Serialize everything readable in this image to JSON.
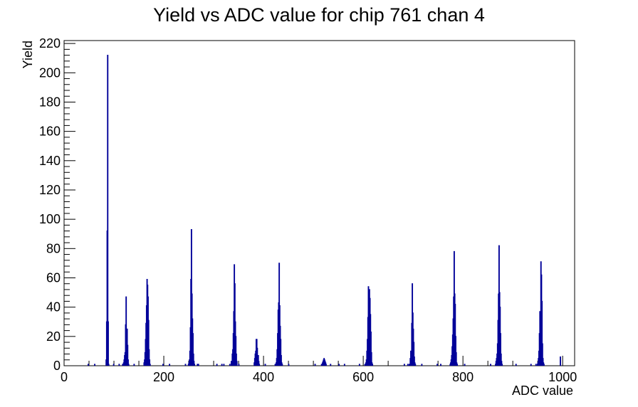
{
  "chart_data": {
    "type": "histogram",
    "title": "Yield vs ADC value for chip 761 chan 4",
    "xlabel": "ADC value",
    "ylabel": "Yield",
    "xlim": [
      0,
      1024
    ],
    "ylim": [
      0,
      222
    ],
    "x_ticks": [
      0,
      200,
      400,
      600,
      800,
      1000
    ],
    "y_ticks": [
      0,
      20,
      40,
      60,
      80,
      100,
      120,
      140,
      160,
      180,
      200,
      220
    ],
    "bin_width": 1,
    "grid": false,
    "line_color": "#000099",
    "bins": [
      [
        48,
        1
      ],
      [
        61,
        1
      ],
      [
        84,
        4
      ],
      [
        85,
        30
      ],
      [
        86,
        92
      ],
      [
        87,
        212
      ],
      [
        88,
        30
      ],
      [
        89,
        1
      ],
      [
        99,
        1
      ],
      [
        110,
        1
      ],
      [
        117,
        1
      ],
      [
        119,
        2
      ],
      [
        120,
        4
      ],
      [
        121,
        7
      ],
      [
        122,
        9
      ],
      [
        123,
        28
      ],
      [
        124,
        47
      ],
      [
        125,
        18
      ],
      [
        126,
        25
      ],
      [
        127,
        14
      ],
      [
        128,
        4
      ],
      [
        129,
        1
      ],
      [
        140,
        1
      ],
      [
        160,
        2
      ],
      [
        161,
        4
      ],
      [
        162,
        9
      ],
      [
        163,
        18
      ],
      [
        164,
        29
      ],
      [
        165,
        41
      ],
      [
        166,
        59
      ],
      [
        167,
        55
      ],
      [
        168,
        47
      ],
      [
        169,
        31
      ],
      [
        170,
        11
      ],
      [
        171,
        4
      ],
      [
        172,
        1
      ],
      [
        198,
        1
      ],
      [
        211,
        1
      ],
      [
        243,
        1
      ],
      [
        249,
        1
      ],
      [
        250,
        2
      ],
      [
        251,
        4
      ],
      [
        252,
        10
      ],
      [
        253,
        26
      ],
      [
        254,
        59
      ],
      [
        255,
        93
      ],
      [
        256,
        49
      ],
      [
        257,
        32
      ],
      [
        258,
        22
      ],
      [
        259,
        8
      ],
      [
        260,
        3
      ],
      [
        261,
        1
      ],
      [
        267,
        1
      ],
      [
        269,
        1
      ],
      [
        306,
        1
      ],
      [
        316,
        1
      ],
      [
        320,
        1
      ],
      [
        332,
        1
      ],
      [
        335,
        3
      ],
      [
        337,
        8
      ],
      [
        338,
        11
      ],
      [
        339,
        22
      ],
      [
        340,
        37
      ],
      [
        341,
        69
      ],
      [
        342,
        56
      ],
      [
        343,
        30
      ],
      [
        344,
        20
      ],
      [
        345,
        8
      ],
      [
        346,
        3
      ],
      [
        350,
        1
      ],
      [
        381,
        2
      ],
      [
        382,
        5
      ],
      [
        383,
        8
      ],
      [
        384,
        10
      ],
      [
        385,
        18
      ],
      [
        386,
        18
      ],
      [
        387,
        12
      ],
      [
        388,
        7
      ],
      [
        389,
        7
      ],
      [
        390,
        3
      ],
      [
        391,
        1
      ],
      [
        403,
        1
      ],
      [
        423,
        1
      ],
      [
        425,
        2
      ],
      [
        426,
        5
      ],
      [
        427,
        11
      ],
      [
        428,
        22
      ],
      [
        429,
        38
      ],
      [
        430,
        43
      ],
      [
        431,
        70
      ],
      [
        432,
        41
      ],
      [
        433,
        27
      ],
      [
        434,
        18
      ],
      [
        435,
        7
      ],
      [
        436,
        2
      ],
      [
        437,
        1
      ],
      [
        450,
        1
      ],
      [
        503,
        1
      ],
      [
        516,
        1
      ],
      [
        518,
        2
      ],
      [
        519,
        3
      ],
      [
        520,
        4
      ],
      [
        521,
        5
      ],
      [
        522,
        4
      ],
      [
        523,
        3
      ],
      [
        524,
        2
      ],
      [
        525,
        1
      ],
      [
        534,
        1
      ],
      [
        551,
        1
      ],
      [
        562,
        1
      ],
      [
        592,
        1
      ],
      [
        603,
        1
      ],
      [
        605,
        2
      ],
      [
        606,
        4
      ],
      [
        607,
        10
      ],
      [
        608,
        18
      ],
      [
        609,
        33
      ],
      [
        610,
        54
      ],
      [
        611,
        46
      ],
      [
        612,
        52
      ],
      [
        613,
        46
      ],
      [
        614,
        35
      ],
      [
        615,
        23
      ],
      [
        616,
        9
      ],
      [
        617,
        2
      ],
      [
        618,
        1
      ],
      [
        682,
        1
      ],
      [
        689,
        1
      ],
      [
        692,
        1
      ],
      [
        694,
        5
      ],
      [
        695,
        10
      ],
      [
        696,
        10
      ],
      [
        697,
        29
      ],
      [
        698,
        56
      ],
      [
        699,
        36
      ],
      [
        700,
        25
      ],
      [
        701,
        16
      ],
      [
        702,
        6
      ],
      [
        703,
        2
      ],
      [
        704,
        1
      ],
      [
        717,
        1
      ],
      [
        748,
        1
      ],
      [
        755,
        1
      ],
      [
        774,
        1
      ],
      [
        775,
        2
      ],
      [
        776,
        4
      ],
      [
        777,
        7
      ],
      [
        778,
        13
      ],
      [
        779,
        21
      ],
      [
        780,
        32
      ],
      [
        781,
        47
      ],
      [
        782,
        78
      ],
      [
        783,
        49
      ],
      [
        784,
        42
      ],
      [
        785,
        20
      ],
      [
        786,
        9
      ],
      [
        787,
        2
      ],
      [
        788,
        1
      ],
      [
        803,
        1
      ],
      [
        855,
        1
      ],
      [
        865,
        1
      ],
      [
        866,
        3
      ],
      [
        867,
        5
      ],
      [
        868,
        8
      ],
      [
        869,
        15
      ],
      [
        870,
        31
      ],
      [
        871,
        49
      ],
      [
        872,
        82
      ],
      [
        873,
        50
      ],
      [
        874,
        40
      ],
      [
        875,
        22
      ],
      [
        876,
        8
      ],
      [
        877,
        3
      ],
      [
        878,
        1
      ],
      [
        906,
        1
      ],
      [
        936,
        1
      ],
      [
        946,
        1
      ],
      [
        949,
        1
      ],
      [
        950,
        2
      ],
      [
        951,
        5
      ],
      [
        952,
        10
      ],
      [
        953,
        22
      ],
      [
        954,
        37
      ],
      [
        955,
        31
      ],
      [
        956,
        71
      ],
      [
        957,
        62
      ],
      [
        958,
        44
      ],
      [
        959,
        15
      ],
      [
        960,
        5
      ],
      [
        961,
        2
      ],
      [
        962,
        1
      ],
      [
        995,
        6
      ]
    ]
  }
}
